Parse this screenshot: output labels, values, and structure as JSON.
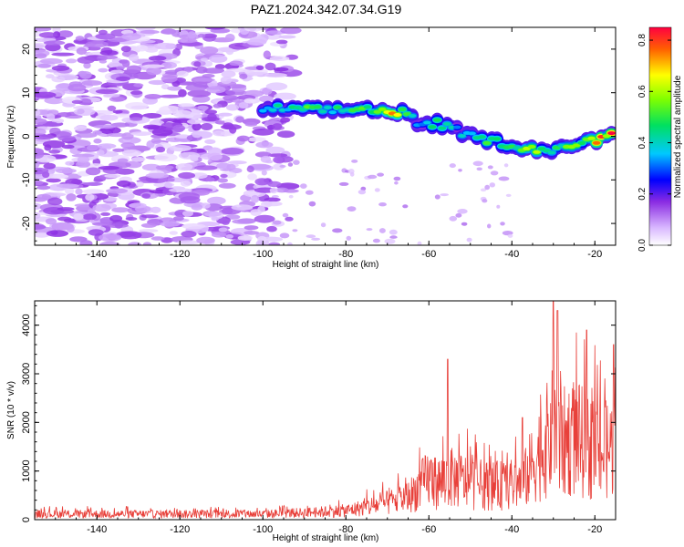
{
  "title": "PAZ1.2024.342.07.34.G19",
  "chart_data": [
    {
      "type": "heatmap",
      "xlabel": "Height of straight line (km)",
      "ylabel": "Frequency (Hz)",
      "xlim": [
        -155,
        -15
      ],
      "ylim": [
        -25,
        25
      ],
      "xticks": [
        -140,
        -120,
        -100,
        -80,
        -60,
        -40,
        -20
      ],
      "yticks": [
        -20,
        -10,
        0,
        10,
        20
      ],
      "colorbar": {
        "label": "Normalized spectral amplitude",
        "range": [
          0,
          0.85
        ],
        "ticks": [
          0.0,
          0.2,
          0.4,
          0.6,
          0.8
        ],
        "colormap": "rainbow (white-violet-blue-cyan-green-yellow-red)"
      },
      "noise_region": {
        "x": [
          -155,
          -100
        ],
        "y": [
          -25,
          25
        ],
        "amplitude": 0.1
      },
      "ridge": {
        "x": [
          -100,
          -95,
          -90,
          -85,
          -80,
          -75,
          -70,
          -65,
          -62,
          -58,
          -55,
          -50,
          -45,
          -40,
          -35,
          -30,
          -25,
          -20,
          -15
        ],
        "freq": [
          6,
          6.5,
          6,
          6,
          6,
          6.5,
          5.5,
          5.5,
          2,
          3,
          2,
          0,
          -1,
          -2,
          -3,
          -3,
          -2,
          -1,
          0.5
        ],
        "amplitude": [
          0.35,
          0.45,
          0.5,
          0.45,
          0.5,
          0.5,
          0.75,
          0.5,
          0.4,
          0.5,
          0.4,
          0.45,
          0.5,
          0.55,
          0.6,
          0.5,
          0.55,
          0.75,
          0.8
        ]
      }
    },
    {
      "type": "line",
      "xlabel": "Height of straight line (km)",
      "ylabel": "SNR (10 * v/v)",
      "xlim": [
        -155,
        -15
      ],
      "ylim": [
        0,
        4500
      ],
      "xticks": [
        -140,
        -120,
        -100,
        -80,
        -60,
        -40,
        -20
      ],
      "yticks": [
        0,
        1000,
        2000,
        3000,
        4000
      ],
      "color": "#e8403a",
      "envelope": {
        "x": [
          -155,
          -100,
          -90,
          -80,
          -75,
          -70,
          -65,
          -62,
          -60,
          -58,
          -55,
          -52,
          -50,
          -45,
          -40,
          -37,
          -35,
          -32,
          -30,
          -28,
          -25,
          -22,
          -20,
          -18,
          -15
        ],
        "y": [
          200,
          200,
          250,
          320,
          450,
          600,
          800,
          1200,
          1500,
          1300,
          1500,
          1400,
          1300,
          1200,
          1250,
          1400,
          2000,
          2700,
          3200,
          2700,
          3000,
          2600,
          2600,
          2400,
          2700
        ]
      },
      "peaks": [
        {
          "x": -55.5,
          "y": 3300
        },
        {
          "x": -37.5,
          "y": 2100
        },
        {
          "x": -30,
          "y": 4500
        },
        {
          "x": -29,
          "y": 4300
        },
        {
          "x": -22,
          "y": 3900
        },
        {
          "x": -15.5,
          "y": 3600
        }
      ]
    }
  ]
}
